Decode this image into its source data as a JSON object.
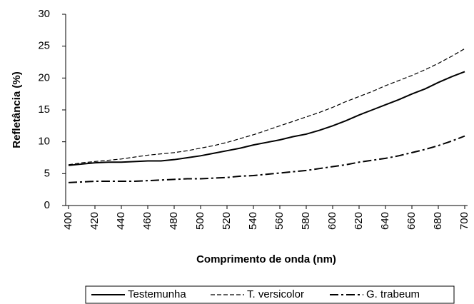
{
  "chart_data": {
    "type": "line",
    "y_label": "Refletância (%)",
    "x_label": "Comprimento de onda (nm)",
    "x": [
      400,
      410,
      420,
      430,
      440,
      450,
      460,
      470,
      480,
      490,
      500,
      510,
      520,
      530,
      540,
      550,
      560,
      570,
      580,
      590,
      600,
      610,
      620,
      630,
      640,
      650,
      660,
      670,
      680,
      690,
      700
    ],
    "series": [
      {
        "name": "Testemunha",
        "color": "#000000",
        "style": "solid",
        "values": [
          6.3,
          6.5,
          6.7,
          6.8,
          6.8,
          6.9,
          7.0,
          7.0,
          7.2,
          7.5,
          7.8,
          8.2,
          8.6,
          9.0,
          9.5,
          9.9,
          10.3,
          10.8,
          11.2,
          11.8,
          12.5,
          13.3,
          14.2,
          15.0,
          15.8,
          16.6,
          17.5,
          18.3,
          19.3,
          20.2,
          21.0
        ]
      },
      {
        "name": "T. versicolor",
        "color": "#000000",
        "style": "dashed",
        "values": [
          6.4,
          6.7,
          6.9,
          7.1,
          7.3,
          7.6,
          7.9,
          8.1,
          8.3,
          8.6,
          9.0,
          9.4,
          9.9,
          10.5,
          11.1,
          11.8,
          12.5,
          13.2,
          13.9,
          14.6,
          15.4,
          16.3,
          17.1,
          17.9,
          18.8,
          19.6,
          20.4,
          21.3,
          22.3,
          23.4,
          24.6
        ]
      },
      {
        "name": "G. trabeum",
        "color": "#000000",
        "style": "dashdot",
        "values": [
          3.6,
          3.7,
          3.8,
          3.8,
          3.8,
          3.8,
          3.9,
          4.0,
          4.1,
          4.2,
          4.2,
          4.3,
          4.4,
          4.6,
          4.7,
          4.9,
          5.1,
          5.3,
          5.5,
          5.8,
          6.1,
          6.4,
          6.8,
          7.1,
          7.4,
          7.8,
          8.3,
          8.8,
          9.4,
          10.1,
          10.9
        ]
      }
    ],
    "xlim": [
      400,
      700
    ],
    "xticks": [
      400,
      420,
      440,
      460,
      480,
      500,
      520,
      540,
      560,
      580,
      600,
      620,
      640,
      660,
      680,
      700
    ],
    "ylim": [
      0,
      30
    ],
    "yticks": [
      0,
      5,
      10,
      15,
      20,
      25,
      30
    ],
    "legend": "bottom"
  }
}
